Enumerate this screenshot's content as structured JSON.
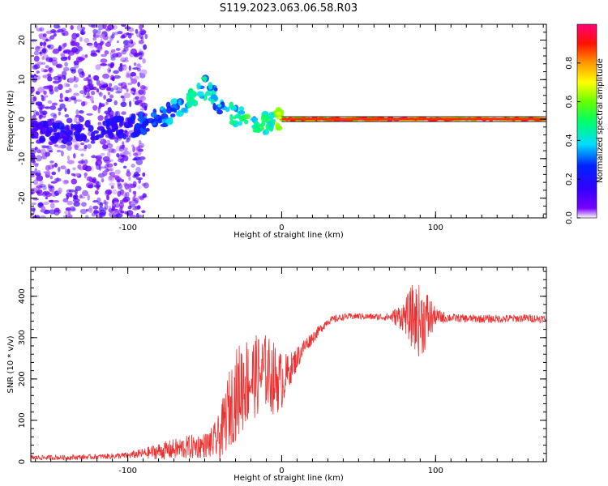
{
  "title": "S119.2023.063.06.58.R03",
  "chart_data": [
    {
      "type": "heatmap",
      "title": "S119.2023.063.06.58.R03",
      "xlabel": "Height of straight line (km)",
      "ylabel": "Frequency (Hz)",
      "xlim": [
        -163,
        172
      ],
      "ylim": [
        -25,
        24
      ],
      "xticks": [
        -100,
        0,
        100
      ],
      "yticks": [
        -20,
        -10,
        0,
        10,
        20
      ],
      "grid": false,
      "colorbar": {
        "label": "Normalized spectral amplitude",
        "range": [
          0,
          1
        ],
        "ticks": [
          0.0,
          0.2,
          0.4,
          0.6,
          0.8
        ],
        "colors": [
          "#ffffff",
          "#5500ff",
          "#0000ff",
          "#00ffff",
          "#00ff00",
          "#ffff00",
          "#ff8800",
          "#ff0000",
          "#ff0088"
        ]
      },
      "ridge": {
        "description": "dominant frequency vs height",
        "x": [
          -160,
          -140,
          -120,
          -100,
          -90,
          -80,
          -70,
          -60,
          -55,
          -50,
          -45,
          -40,
          -35,
          -30,
          -25,
          -20,
          -15,
          -10,
          -5,
          0,
          20,
          50,
          100,
          150,
          172
        ],
        "freq": [
          -3,
          -4,
          -3,
          -2,
          -1,
          0,
          2,
          5,
          7,
          8,
          6,
          4,
          2,
          1,
          1,
          0,
          -1,
          -1,
          0,
          0,
          0,
          0,
          0,
          0,
          0
        ],
        "amplitude": [
          0.15,
          0.2,
          0.2,
          0.2,
          0.3,
          0.35,
          0.4,
          0.45,
          0.5,
          0.45,
          0.4,
          0.4,
          0.45,
          0.5,
          0.6,
          0.55,
          0.5,
          0.5,
          0.6,
          0.9,
          0.95,
          0.95,
          0.95,
          0.95,
          0.9
        ]
      }
    },
    {
      "type": "line",
      "xlabel": "Height of straight line (km)",
      "ylabel": "SNR (10 * v/v)",
      "xlim": [
        -163,
        172
      ],
      "ylim": [
        0,
        470
      ],
      "xticks": [
        -100,
        0,
        100
      ],
      "yticks": [
        0,
        100,
        200,
        300,
        400
      ],
      "grid": false,
      "series": [
        {
          "name": "SNR",
          "color": "#ee3030",
          "x": [
            -163,
            -140,
            -120,
            -100,
            -90,
            -80,
            -70,
            -60,
            -50,
            -45,
            -40,
            -35,
            -30,
            -25,
            -20,
            -15,
            -10,
            -5,
            0,
            5,
            10,
            15,
            20,
            25,
            30,
            40,
            50,
            60,
            70,
            80,
            85,
            90,
            95,
            100,
            110,
            120,
            140,
            160,
            172
          ],
          "values": [
            10,
            10,
            12,
            15,
            20,
            25,
            30,
            35,
            40,
            45,
            60,
            120,
            160,
            190,
            200,
            210,
            220,
            200,
            195,
            220,
            250,
            280,
            300,
            320,
            340,
            350,
            352,
            350,
            350,
            352,
            350,
            340,
            345,
            350,
            348,
            346,
            345,
            347,
            345
          ],
          "noise_amplitude": [
            6,
            6,
            6,
            8,
            12,
            20,
            25,
            30,
            30,
            40,
            60,
            90,
            110,
            120,
            100,
            100,
            90,
            90,
            70,
            40,
            30,
            20,
            15,
            12,
            10,
            8,
            8,
            8,
            10,
            40,
            80,
            90,
            70,
            20,
            10,
            10,
            10,
            10,
            10
          ]
        }
      ]
    }
  ]
}
